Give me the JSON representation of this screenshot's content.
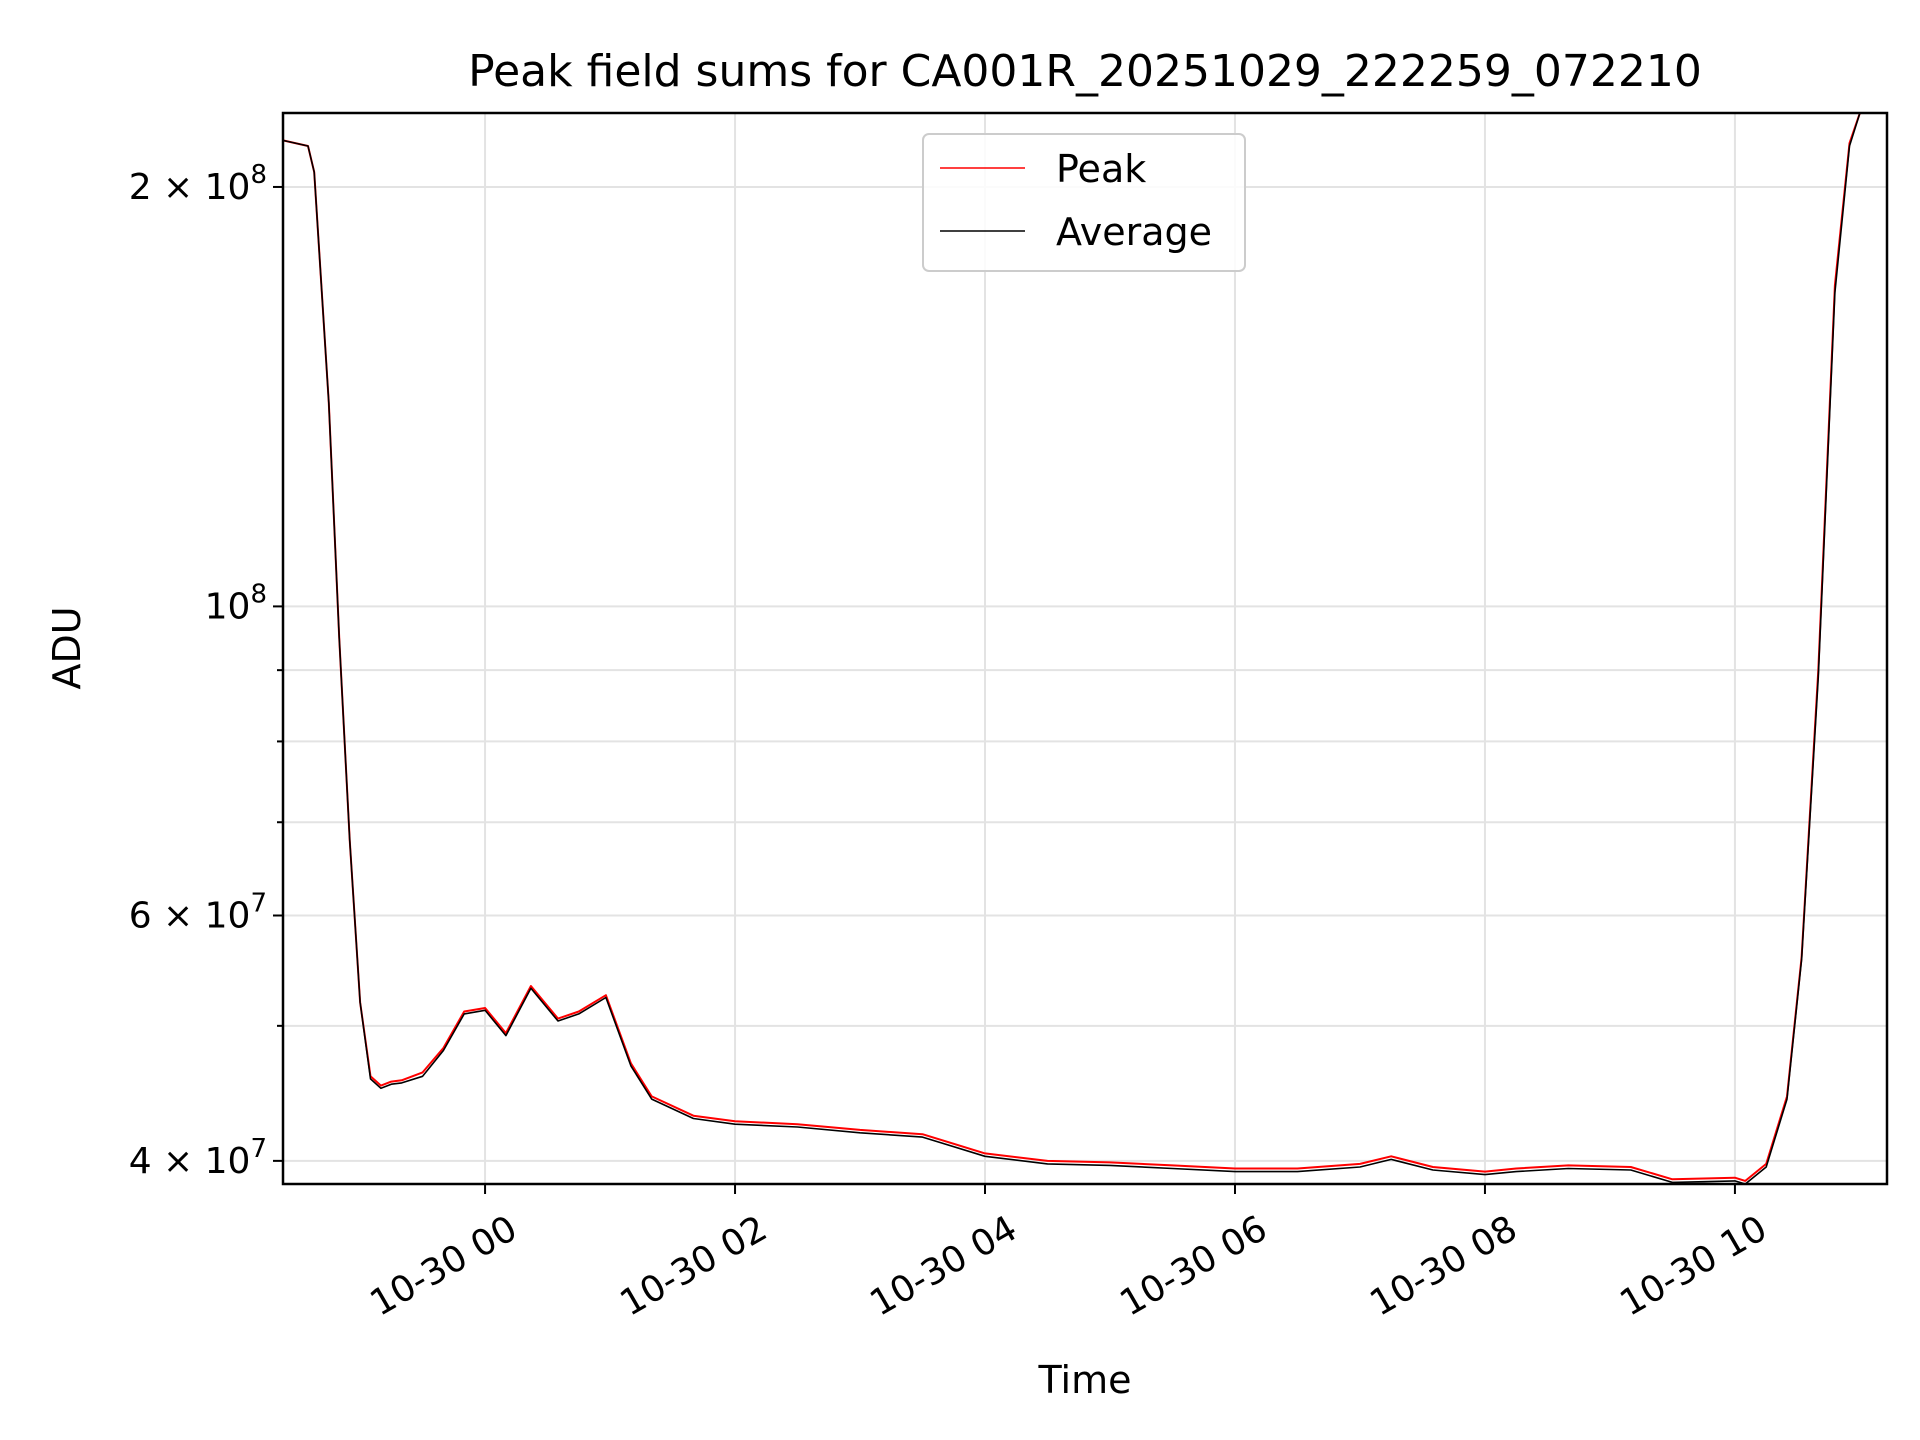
{
  "chart_data": {
    "type": "line",
    "title": "Peak field sums for CA001R_20251029_222259_072210",
    "xlabel": "Time",
    "ylabel": "ADU",
    "x_scale": "time",
    "y_scale": "log",
    "xlim": [
      "2025-10-29 22:23",
      "2025-10-30 11:13"
    ],
    "ylim": [
      38500000,
      226000000
    ],
    "grid": true,
    "legend_position": "top-center",
    "x_ticks": [
      {
        "value": "2025-10-30 00:00",
        "label": "10-30 00"
      },
      {
        "value": "2025-10-30 02:00",
        "label": "10-30 02"
      },
      {
        "value": "2025-10-30 04:00",
        "label": "10-30 04"
      },
      {
        "value": "2025-10-30 06:00",
        "label": "10-30 06"
      },
      {
        "value": "2025-10-30 08:00",
        "label": "10-30 08"
      },
      {
        "value": "2025-10-30 10:00",
        "label": "10-30 10"
      }
    ],
    "y_ticks": [
      {
        "value": 40000000,
        "base": "4 × 10",
        "exp": "7"
      },
      {
        "value": 60000000,
        "base": "6 × 10",
        "exp": "7"
      },
      {
        "value": 100000000,
        "base": "10",
        "exp": "8"
      },
      {
        "value": 200000000,
        "base": "2 × 10",
        "exp": "8"
      }
    ],
    "y_minor_ticks": [
      50000000,
      70000000,
      80000000,
      90000000
    ],
    "series": [
      {
        "name": "Peak",
        "color": "#ff0000",
        "x": [
          "2025-10-29 22:23",
          "2025-10-29 22:35",
          "2025-10-29 22:38",
          "2025-10-29 22:45",
          "2025-10-29 22:50",
          "2025-10-29 22:55",
          "2025-10-29 23:00",
          "2025-10-29 23:05",
          "2025-10-29 23:10",
          "2025-10-29 23:15",
          "2025-10-29 23:20",
          "2025-10-29 23:30",
          "2025-10-29 23:40",
          "2025-10-29 23:50",
          "2025-10-30 00:00",
          "2025-10-30 00:10",
          "2025-10-30 00:22",
          "2025-10-30 00:35",
          "2025-10-30 00:45",
          "2025-10-30 00:58",
          "2025-10-30 01:10",
          "2025-10-30 01:20",
          "2025-10-30 01:40",
          "2025-10-30 02:00",
          "2025-10-30 02:30",
          "2025-10-30 03:00",
          "2025-10-30 03:30",
          "2025-10-30 04:00",
          "2025-10-30 04:30",
          "2025-10-30 05:00",
          "2025-10-30 05:30",
          "2025-10-30 06:00",
          "2025-10-30 06:30",
          "2025-10-30 07:00",
          "2025-10-30 07:15",
          "2025-10-30 07:35",
          "2025-10-30 08:00",
          "2025-10-30 08:15",
          "2025-10-30 08:40",
          "2025-10-30 09:10",
          "2025-10-30 09:30",
          "2025-10-30 10:00",
          "2025-10-30 10:05",
          "2025-10-30 10:15",
          "2025-10-30 10:25",
          "2025-10-30 10:32",
          "2025-10-30 10:40",
          "2025-10-30 10:48",
          "2025-10-30 10:55",
          "2025-10-30 11:00",
          "2025-10-30 11:13"
        ],
        "y": [
          216000000,
          214000000,
          205000000,
          140000000,
          95000000,
          68000000,
          52000000,
          46000000,
          45300000,
          45600000,
          45700000,
          46300000,
          48200000,
          51200000,
          51500000,
          49400000,
          53400000,
          50600000,
          51200000,
          52600000,
          47000000,
          44500000,
          43100000,
          42700000,
          42500000,
          42100000,
          41800000,
          40500000,
          40000000,
          39900000,
          39700000,
          39500000,
          39500000,
          39800000,
          40300000,
          39600000,
          39300000,
          39500000,
          39700000,
          39600000,
          38800000,
          38900000,
          38700000,
          39800000,
          44500000,
          56000000,
          90000000,
          170000000,
          215000000,
          226000000,
          226000000
        ]
      },
      {
        "name": "Average",
        "color": "#000000",
        "x": [
          "2025-10-29 22:23",
          "2025-10-29 22:35",
          "2025-10-29 22:38",
          "2025-10-29 22:45",
          "2025-10-29 22:50",
          "2025-10-29 22:55",
          "2025-10-29 23:00",
          "2025-10-29 23:05",
          "2025-10-29 23:10",
          "2025-10-29 23:15",
          "2025-10-29 23:20",
          "2025-10-29 23:30",
          "2025-10-29 23:40",
          "2025-10-29 23:50",
          "2025-10-30 00:00",
          "2025-10-30 00:10",
          "2025-10-30 00:22",
          "2025-10-30 00:35",
          "2025-10-30 00:45",
          "2025-10-30 00:58",
          "2025-10-30 01:10",
          "2025-10-30 01:20",
          "2025-10-30 01:40",
          "2025-10-30 02:00",
          "2025-10-30 02:30",
          "2025-10-30 03:00",
          "2025-10-30 03:30",
          "2025-10-30 04:00",
          "2025-10-30 04:30",
          "2025-10-30 05:00",
          "2025-10-30 05:30",
          "2025-10-30 06:00",
          "2025-10-30 06:30",
          "2025-10-30 07:00",
          "2025-10-30 07:15",
          "2025-10-30 07:35",
          "2025-10-30 08:00",
          "2025-10-30 08:15",
          "2025-10-30 08:40",
          "2025-10-30 09:10",
          "2025-10-30 09:30",
          "2025-10-30 10:00",
          "2025-10-30 10:05",
          "2025-10-30 10:15",
          "2025-10-30 10:25",
          "2025-10-30 10:32",
          "2025-10-30 10:40",
          "2025-10-30 10:48",
          "2025-10-30 10:55",
          "2025-10-30 11:00",
          "2025-10-30 11:13"
        ],
        "y": [
          216000000,
          214000000,
          205000000,
          140000000,
          95000000,
          68000000,
          52000000,
          45800000,
          45100000,
          45400000,
          45500000,
          46000000,
          48000000,
          51000000,
          51300000,
          49200000,
          53200000,
          50400000,
          51000000,
          52400000,
          46800000,
          44300000,
          42900000,
          42500000,
          42300000,
          41900000,
          41600000,
          40300000,
          39800000,
          39700000,
          39500000,
          39300000,
          39300000,
          39600000,
          40100000,
          39400000,
          39100000,
          39300000,
          39500000,
          39400000,
          38600000,
          38700000,
          38500000,
          39600000,
          44300000,
          55800000,
          89000000,
          168000000,
          214000000,
          226000000,
          226000000
        ]
      }
    ]
  }
}
